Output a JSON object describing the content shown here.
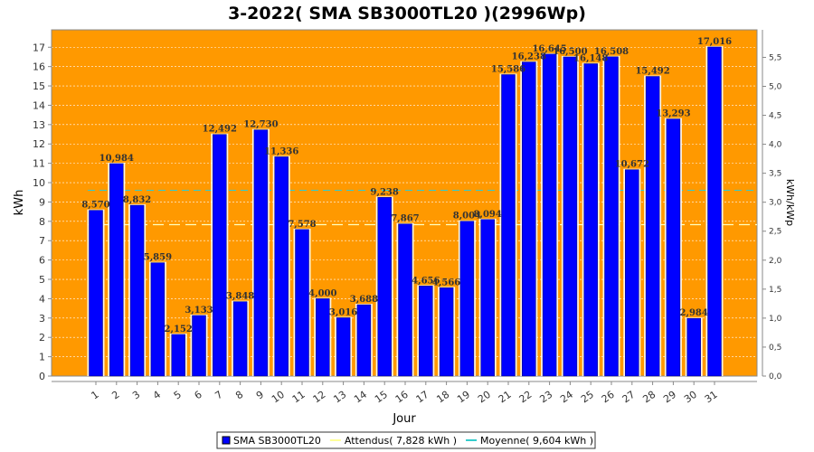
{
  "chart_data": {
    "type": "bar",
    "title": "3-2022( SMA SB3000TL20 )(2996Wp)",
    "xlabel": "Jour",
    "ylabel": "kWh",
    "ylabel_right": "kWh/kWp",
    "categories": [
      "1",
      "2",
      "3",
      "4",
      "5",
      "6",
      "7",
      "8",
      "9",
      "10",
      "11",
      "12",
      "13",
      "14",
      "15",
      "16",
      "17",
      "18",
      "19",
      "20",
      "21",
      "22",
      "23",
      "24",
      "25",
      "26",
      "27",
      "28",
      "29",
      "30",
      "31"
    ],
    "series": [
      {
        "name": "SMA SB3000TL20",
        "values": [
          8.57,
          10.984,
          8.832,
          5.859,
          2.152,
          3.133,
          12.492,
          3.848,
          12.73,
          11.336,
          7.578,
          4.0,
          3.016,
          3.688,
          9.238,
          7.867,
          4.656,
          4.566,
          8.004,
          8.094,
          15.586,
          16.238,
          16.645,
          16.5,
          16.148,
          16.508,
          10.672,
          15.492,
          13.293,
          2.984,
          17.016
        ],
        "labels": [
          "8,570",
          "10,984",
          "8,832",
          "5,859",
          "2,152",
          "3,133",
          "12,492",
          "3,848",
          "12,730",
          "11,336",
          "7,578",
          "4,000",
          "3,016",
          "3,688",
          "9,238",
          "7,867",
          "4,656",
          "4,566",
          "8,004",
          "8,094",
          "15,586",
          "16,238",
          "16,645",
          "16,500",
          "16,148",
          "16,508",
          "10,672",
          "15,492",
          "13,293",
          "2,984",
          "17,016"
        ],
        "color": "#0000FF"
      }
    ],
    "reference_lines": [
      {
        "name": "Attendus",
        "value": 7.828,
        "color": "#FFFFC0"
      },
      {
        "name": "Moyenne",
        "value": 9.604,
        "color": "#33CCCC"
      }
    ],
    "legend": [
      {
        "label": "SMA SB3000TL20",
        "color": "#0000FF"
      },
      {
        "label": "Attendus( 7,828 kWh )",
        "color": "#FFFF99"
      },
      {
        "label": "Moyenne( 9,604 kWh )",
        "color": "#33CCCC"
      }
    ],
    "ylim": [
      0,
      17.9
    ],
    "yticks": [
      "0",
      "1",
      "2",
      "3",
      "4",
      "5",
      "6",
      "7",
      "8",
      "9",
      "10",
      "11",
      "12",
      "13",
      "14",
      "15",
      "16",
      "17"
    ],
    "y2lim": [
      0,
      5.975
    ],
    "y2ticks": [
      "0,0",
      "0,5",
      "1,0",
      "1,5",
      "2,0",
      "2,5",
      "3,0",
      "3,5",
      "4,0",
      "4,5",
      "5,0",
      "5,5"
    ],
    "plot_background": "#FF9900",
    "grid": true,
    "legend_position": "bottom"
  }
}
